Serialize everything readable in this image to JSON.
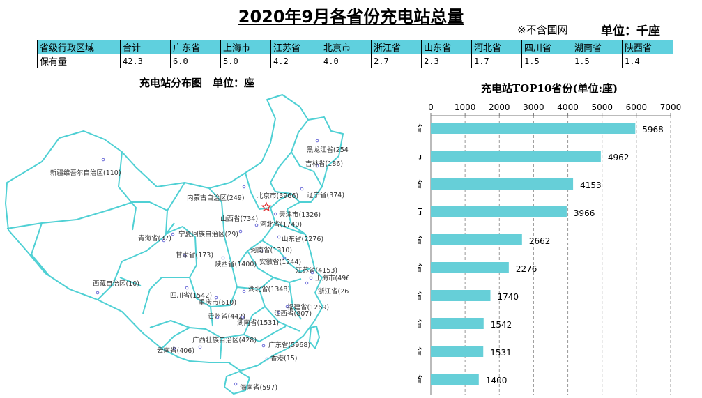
{
  "header": {
    "title": "2020年9月各省份充电站总量",
    "note": "※不含国网",
    "unit": "单位：千座"
  },
  "summary_table": {
    "headers": [
      "省级行政区域",
      "合计",
      "广东省",
      "上海市",
      "江苏省",
      "北京市",
      "浙江省",
      "山东省",
      "河北省",
      "四川省",
      "湖南省",
      "陕西省"
    ],
    "row": [
      "保有量",
      "42.3",
      "6.0",
      "5.0",
      "4.2",
      "4.0",
      "2.7",
      "2.3",
      "1.7",
      "1.5",
      "1.5",
      "1.4"
    ]
  },
  "map": {
    "title": "充电站分布图　单位：座",
    "labels": [
      "黑龙江省(254)",
      "吉林省(186)",
      "辽宁省(374)",
      "内蒙古自治区(249)",
      "北京市(3966)",
      "天津市(1326)",
      "河北省(1740)",
      "山西省(734)",
      "山东省(2276)",
      "宁夏回族自治区(29)",
      "甘肃省(173)",
      "青海省(37)",
      "新疆维吾尔自治区(110)",
      "西藏自治区(10)",
      "陕西省(1400)",
      "河南省(1310)",
      "安徽省(1244)",
      "江苏省(4153)",
      "上海市(4962)",
      "浙江省(2662)",
      "湖北省(1348)",
      "四川省(1542)",
      "重庆市(610)",
      "贵州省(442)",
      "湖南省(1531)",
      "江西省(807)",
      "福建省(1269)",
      "云南省(406)",
      "广西壮族自治区(428)",
      "广东省(5968)",
      "香港(15)",
      "海南省(597)"
    ],
    "colors": {
      "outline": "#4fd0d4",
      "marker": "#6b6bd8",
      "capital": "#e03030"
    }
  },
  "chart_data": {
    "type": "bar",
    "orientation": "horizontal",
    "title": "充电站TOP10省份(单位:座)",
    "categories": [
      "广东省",
      "上海市",
      "江苏省",
      "北京市",
      "浙江省",
      "山东省",
      "河北省",
      "四川省",
      "湖南省",
      "陕西省"
    ],
    "values": [
      5968,
      4962,
      4153,
      3966,
      2662,
      2276,
      1740,
      1542,
      1531,
      1400
    ],
    "xlim": [
      0,
      7000
    ],
    "xticks": [
      0,
      1000,
      2000,
      3000,
      4000,
      5000,
      6000,
      7000
    ],
    "axis_position": "top",
    "grid": "vertical dashed",
    "bar_color": "#66cfd8"
  }
}
